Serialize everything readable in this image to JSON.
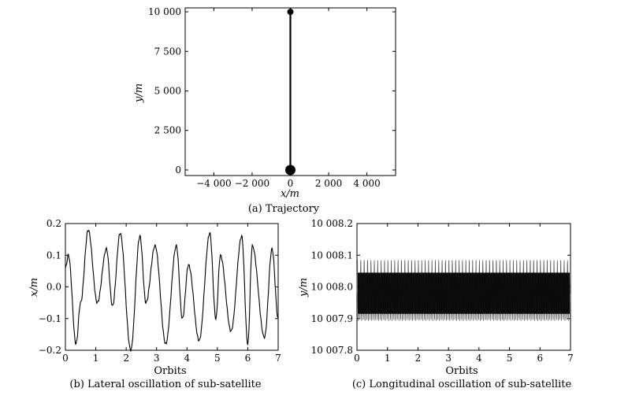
{
  "chart_data": [
    {
      "id": "a",
      "type": "line",
      "caption": "(a) Trajectory",
      "xlabel": "x/m",
      "ylabel": "y/m",
      "xlim": [
        -5500,
        5500
      ],
      "ylim": [
        -350,
        10250
      ],
      "xticks": [
        -4000,
        -2000,
        0,
        2000,
        4000
      ],
      "xtick_labels": [
        "−4 000",
        "−2 000",
        "0",
        "2 000",
        "4 000"
      ],
      "yticks": [
        0,
        2500,
        5000,
        7500,
        10000
      ],
      "ytick_labels": [
        "0",
        "2 500",
        "5 000",
        "7 500",
        "10 000"
      ],
      "grid": false,
      "series": [
        {
          "x": [
            0,
            0,
            0,
            0,
            0,
            0
          ],
          "y": [
            0,
            2000,
            4000,
            6000,
            8000,
            10000
          ]
        }
      ],
      "markers": [
        {
          "x": 0,
          "y": 10000,
          "size": "small"
        },
        {
          "x": 0,
          "y": 0,
          "size": "large"
        }
      ]
    },
    {
      "id": "b",
      "type": "line",
      "caption": "(b) Lateral oscillation of sub-satellite",
      "xlabel": "Orbits",
      "ylabel": "x/m",
      "xlim": [
        0,
        7
      ],
      "ylim": [
        -0.2,
        0.2
      ],
      "xticks": [
        0,
        1,
        2,
        3,
        4,
        5,
        6,
        7
      ],
      "xtick_labels": [
        "0",
        "1",
        "2",
        "3",
        "4",
        "5",
        "6",
        "7"
      ],
      "yticks": [
        -0.2,
        -0.1,
        0.0,
        0.1,
        0.2
      ],
      "ytick_labels": [
        "−0.2",
        "−0.1",
        "0.0",
        "0.1",
        "0.2"
      ],
      "grid": false,
      "series": [
        {
          "x": [
            0.0,
            0.1,
            0.35,
            0.5,
            0.75,
            1.05,
            1.35,
            1.55,
            1.8,
            2.15,
            2.45,
            2.65,
            2.95,
            3.3,
            3.65,
            3.85,
            4.05,
            4.4,
            4.75,
            4.95,
            5.1,
            5.45,
            5.8,
            6.0,
            6.15,
            6.55,
            6.8,
            7.0
          ],
          "y": [
            0.06,
            0.1,
            -0.18,
            -0.05,
            0.18,
            -0.05,
            0.12,
            -0.06,
            0.17,
            -0.2,
            0.16,
            -0.05,
            0.13,
            -0.18,
            0.13,
            -0.1,
            0.07,
            -0.17,
            0.17,
            -0.1,
            0.1,
            -0.14,
            0.16,
            -0.18,
            0.13,
            -0.16,
            0.12,
            -0.1
          ]
        }
      ]
    },
    {
      "id": "c",
      "type": "line",
      "caption": "(c) Longitudinal oscillation of sub-satellite",
      "xlabel": "Orbits",
      "ylabel": "y/m",
      "xlim": [
        0,
        7
      ],
      "ylim": [
        10007.8,
        10008.2
      ],
      "xticks": [
        0,
        1,
        2,
        3,
        4,
        5,
        6,
        7
      ],
      "xtick_labels": [
        "0",
        "1",
        "2",
        "3",
        "4",
        "5",
        "6",
        "7"
      ],
      "yticks": [
        10007.8,
        10007.9,
        10008.0,
        10008.1,
        10008.2
      ],
      "ytick_labels": [
        "10 007.8",
        "10 007.9",
        "10 008.0",
        "10 008.1",
        "10 008.2"
      ],
      "grid": false,
      "series": [
        {
          "mean": 10007.98,
          "inner_amplitude": 0.065,
          "outer_amplitude": 0.105,
          "cycles_per_orbit": 18
        }
      ]
    }
  ]
}
